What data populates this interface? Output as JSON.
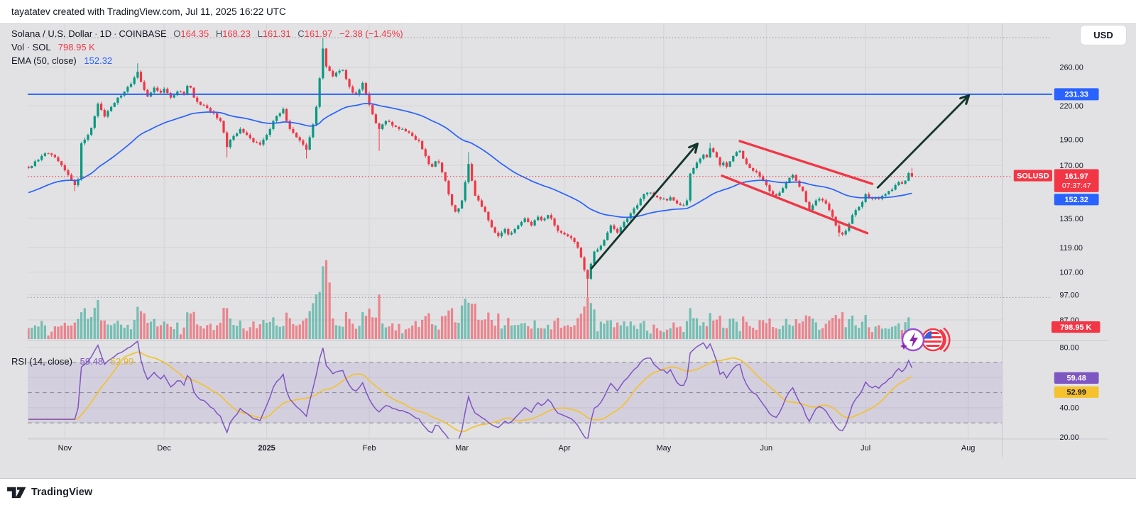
{
  "header": {
    "attribution": "tayatatev created with TradingView.com, Jul 11, 2025 16:22 UTC"
  },
  "currency_button": "USD",
  "legend": {
    "title": "Solana / U.S. Dollar",
    "separator": "·",
    "interval": "1D",
    "exchange": "COINBASE",
    "open_label": "O",
    "open": "164.35",
    "high_label": "H",
    "high": "168.23",
    "low_label": "L",
    "low": "161.31",
    "close_label": "C",
    "close": "161.97",
    "change": "−2.38 (−1.45%)",
    "volume_label": "Vol · SOL",
    "volume": "798.95 K",
    "ema_label": "EMA (50, close)",
    "ema": "152.32"
  },
  "rsi_legend": {
    "label": "RSI (14, close)",
    "value": "59.48",
    "ma": "52.99"
  },
  "footer": {
    "brand": "TradingView"
  },
  "axis": {
    "price_ticks": [
      260,
      220,
      190,
      170,
      135,
      119,
      107,
      97,
      87
    ],
    "rsi_ticks": [
      80,
      40,
      20
    ],
    "months": [
      {
        "label": "Nov",
        "day": 11
      },
      {
        "label": "Dec",
        "day": 41
      },
      {
        "label": "2025",
        "day": 72,
        "bold": true
      },
      {
        "label": "Feb",
        "day": 103
      },
      {
        "label": "Mar",
        "day": 131
      },
      {
        "label": "Apr",
        "day": 162
      },
      {
        "label": "May",
        "day": 192
      },
      {
        "label": "Jun",
        "day": 223
      },
      {
        "label": "Jul",
        "day": 253
      },
      {
        "label": "Aug",
        "day": 284
      }
    ],
    "floating_labels": {
      "hline_value": "231.33",
      "symbol_tag": "SOLUSD",
      "last_price": "161.97",
      "countdown": "07:37:47",
      "ema_value": "152.32",
      "volume_value": "798.95 K",
      "rsi_value": "59.48",
      "rsi_ma_value": "52.99"
    }
  },
  "chart_data": {
    "type": "candlestick",
    "symbol": "SOLUSD",
    "title": "Solana / U.S. Dollar · 1D · COINBASE",
    "interval": "1D",
    "scale": "log",
    "price_axis_range_visible": [
      80.7,
      312
    ],
    "last_bar": {
      "open": 164.35,
      "high": 168.23,
      "low": 161.31,
      "close": 161.97,
      "change": -2.38,
      "change_pct": -1.45
    },
    "indicators": {
      "ema50": 152.32,
      "rsi14": 59.48,
      "rsi14_ma": 52.99,
      "volume": "798.95 K"
    },
    "rsi_bands": {
      "upper": 70,
      "middle": 50,
      "lower": 30
    },
    "close_waypoints": [
      [
        0,
        168
      ],
      [
        2,
        173
      ],
      [
        4,
        177
      ],
      [
        6,
        179
      ],
      [
        8,
        176
      ],
      [
        10,
        170
      ],
      [
        12,
        163
      ],
      [
        14,
        156
      ],
      [
        15,
        160
      ],
      [
        16,
        187
      ],
      [
        17,
        190
      ],
      [
        18,
        194
      ],
      [
        19,
        200
      ],
      [
        21,
        222
      ],
      [
        23,
        210
      ],
      [
        25,
        219
      ],
      [
        27,
        228
      ],
      [
        29,
        234
      ],
      [
        31,
        242
      ],
      [
        33,
        255
      ],
      [
        34,
        244
      ],
      [
        36,
        229
      ],
      [
        38,
        238
      ],
      [
        40,
        233
      ],
      [
        41,
        237
      ],
      [
        43,
        228
      ],
      [
        45,
        234
      ],
      [
        47,
        231
      ],
      [
        48,
        240
      ],
      [
        49,
        238
      ],
      [
        50,
        228
      ],
      [
        52,
        221
      ],
      [
        54,
        218
      ],
      [
        56,
        213
      ],
      [
        58,
        206
      ],
      [
        59,
        196
      ],
      [
        60,
        184
      ],
      [
        61,
        190
      ],
      [
        62,
        193
      ],
      [
        64,
        199
      ],
      [
        66,
        194
      ],
      [
        68,
        188
      ],
      [
        70,
        186
      ],
      [
        71,
        190
      ],
      [
        72,
        194
      ],
      [
        74,
        206
      ],
      [
        76,
        213
      ],
      [
        77,
        217
      ],
      [
        78,
        206
      ],
      [
        79,
        199
      ],
      [
        81,
        192
      ],
      [
        83,
        186
      ],
      [
        84,
        182
      ],
      [
        85,
        192
      ],
      [
        86,
        203
      ],
      [
        87,
        219
      ],
      [
        88,
        248
      ],
      [
        89,
        282
      ],
      [
        90,
        261
      ],
      [
        91,
        256
      ],
      [
        92,
        250
      ],
      [
        93,
        254
      ],
      [
        95,
        257
      ],
      [
        96,
        247
      ],
      [
        97,
        239
      ],
      [
        98,
        233
      ],
      [
        99,
        231
      ],
      [
        100,
        236
      ],
      [
        101,
        243
      ],
      [
        102,
        232
      ],
      [
        103,
        221
      ],
      [
        104,
        212
      ],
      [
        105,
        204
      ],
      [
        106,
        199
      ],
      [
        107,
        203
      ],
      [
        108,
        206
      ],
      [
        110,
        202
      ],
      [
        112,
        199
      ],
      [
        114,
        197
      ],
      [
        116,
        193
      ],
      [
        118,
        189
      ],
      [
        120,
        177
      ],
      [
        121,
        171
      ],
      [
        122,
        169
      ],
      [
        123,
        173
      ],
      [
        124,
        172
      ],
      [
        125,
        165
      ],
      [
        126,
        159
      ],
      [
        127,
        150
      ],
      [
        128,
        143
      ],
      [
        129,
        139
      ],
      [
        130,
        141
      ],
      [
        131,
        146
      ],
      [
        132,
        158
      ],
      [
        133,
        171
      ],
      [
        134,
        159
      ],
      [
        135,
        149
      ],
      [
        136,
        146
      ],
      [
        137,
        142
      ],
      [
        138,
        139
      ],
      [
        139,
        134
      ],
      [
        140,
        130
      ],
      [
        141,
        127
      ],
      [
        142,
        125
      ],
      [
        143,
        127
      ],
      [
        144,
        129
      ],
      [
        145,
        126
      ],
      [
        146,
        127
      ],
      [
        147,
        129
      ],
      [
        148,
        131
      ],
      [
        149,
        133
      ],
      [
        150,
        135
      ],
      [
        151,
        133
      ],
      [
        152,
        131
      ],
      [
        153,
        134
      ],
      [
        154,
        136
      ],
      [
        155,
        134
      ],
      [
        156,
        135
      ],
      [
        157,
        137
      ],
      [
        158,
        135
      ],
      [
        159,
        131
      ],
      [
        160,
        128
      ],
      [
        161,
        127
      ],
      [
        162,
        126
      ],
      [
        163,
        125
      ],
      [
        164,
        124
      ],
      [
        165,
        122
      ],
      [
        166,
        119
      ],
      [
        167,
        114
      ],
      [
        168,
        108
      ],
      [
        169,
        104
      ],
      [
        170,
        111
      ],
      [
        171,
        117
      ],
      [
        172,
        118
      ],
      [
        173,
        120
      ],
      [
        174,
        123
      ],
      [
        175,
        127
      ],
      [
        176,
        131
      ],
      [
        177,
        129
      ],
      [
        178,
        127
      ],
      [
        179,
        130
      ],
      [
        180,
        133
      ],
      [
        181,
        135
      ],
      [
        182,
        138
      ],
      [
        183,
        141
      ],
      [
        184,
        143
      ],
      [
        185,
        147
      ],
      [
        186,
        150
      ],
      [
        187,
        151
      ],
      [
        188,
        151
      ],
      [
        189,
        149
      ],
      [
        190,
        148
      ],
      [
        191,
        147
      ],
      [
        192,
        147
      ],
      [
        193,
        146
      ],
      [
        194,
        148
      ],
      [
        195,
        146
      ],
      [
        196,
        144
      ],
      [
        197,
        143
      ],
      [
        198,
        143
      ],
      [
        199,
        146
      ],
      [
        200,
        164
      ],
      [
        201,
        168
      ],
      [
        202,
        172
      ],
      [
        203,
        175
      ],
      [
        204,
        178
      ],
      [
        205,
        176
      ],
      [
        206,
        183
      ],
      [
        207,
        180
      ],
      [
        208,
        176
      ],
      [
        209,
        170
      ],
      [
        210,
        172
      ],
      [
        211,
        169
      ],
      [
        212,
        173
      ],
      [
        213,
        177
      ],
      [
        214,
        180
      ],
      [
        215,
        181
      ],
      [
        216,
        175
      ],
      [
        217,
        171
      ],
      [
        218,
        168
      ],
      [
        219,
        166
      ],
      [
        220,
        165
      ],
      [
        221,
        162
      ],
      [
        222,
        159
      ],
      [
        223,
        156
      ],
      [
        224,
        152
      ],
      [
        225,
        150
      ],
      [
        226,
        149
      ],
      [
        227,
        151
      ],
      [
        228,
        154
      ],
      [
        229,
        158
      ],
      [
        230,
        161
      ],
      [
        231,
        163
      ],
      [
        232,
        159
      ],
      [
        233,
        155
      ],
      [
        234,
        152
      ],
      [
        235,
        145
      ],
      [
        236,
        140
      ],
      [
        237,
        143
      ],
      [
        238,
        146
      ],
      [
        239,
        147
      ],
      [
        240,
        146
      ],
      [
        241,
        144
      ],
      [
        242,
        140
      ],
      [
        243,
        136
      ],
      [
        244,
        131
      ],
      [
        245,
        127
      ],
      [
        246,
        126
      ],
      [
        247,
        128
      ],
      [
        248,
        132
      ],
      [
        249,
        137
      ],
      [
        250,
        140
      ],
      [
        251,
        142
      ],
      [
        252,
        145
      ],
      [
        253,
        150
      ],
      [
        254,
        148
      ],
      [
        255,
        147
      ],
      [
        256,
        148
      ],
      [
        257,
        147
      ],
      [
        258,
        149
      ],
      [
        259,
        150
      ],
      [
        260,
        152
      ],
      [
        261,
        153
      ],
      [
        262,
        156
      ],
      [
        263,
        158
      ],
      [
        264,
        157
      ],
      [
        265,
        159
      ],
      [
        266,
        164.35
      ],
      [
        267,
        161.97
      ]
    ],
    "wick_overrides": {
      "14": {
        "l": 152
      },
      "33": {
        "h": 264.5
      },
      "60": {
        "l": 176
      },
      "84": {
        "l": 175
      },
      "89": {
        "h": 295.8
      },
      "106": {
        "l": 181
      },
      "133": {
        "h": 180
      },
      "169": {
        "l": 96
      },
      "206": {
        "h": 187.3
      },
      "245": {
        "l": 124.8
      },
      "267": {
        "o": 164.35,
        "h": 168.23,
        "l": 161.31,
        "c": 161.97
      }
    },
    "volume_overrides": {
      "16": 40,
      "17": 46,
      "21": 58,
      "33": 48,
      "49": 38,
      "60": 46,
      "89": 108,
      "90": 117,
      "91": 84,
      "101": 40,
      "106": 66,
      "128": 46,
      "131": 50,
      "133": 54,
      "142": 38,
      "169": 62,
      "171": 44,
      "200": 46,
      "236": 34,
      "244": 36,
      "246": 40,
      "267": 13
    },
    "annotations": {
      "hline_blue": 231.33,
      "current_price_line": 161.97,
      "dotted_hlines": [
        295.5,
        95.9
      ],
      "arrows": [
        {
          "from_day": 170,
          "from_price": 108.5,
          "to_day": 202,
          "to_price": 186
        },
        {
          "from_day": 256.5,
          "from_price": 154,
          "to_day": 284,
          "to_price": 229.5
        }
      ],
      "channel": [
        {
          "from_day": 215,
          "from_price": 188.8,
          "to_day": 255,
          "to_price": 156.9
        },
        {
          "from_day": 209.6,
          "from_price": 162.5,
          "to_day": 253.5,
          "to_price": 126.7
        }
      ]
    },
    "colors": {
      "up": "#089981",
      "down": "#F23645",
      "vol_up": "rgba(8,153,129,0.5)",
      "vol_down": "rgba(242,54,69,0.55)",
      "ema": "#2962FF",
      "rsi": "#7E57C2",
      "rsi_ma": "#F2C230",
      "accent_blue": "#2962FF",
      "accent_red": "#F23645",
      "label_yellow": "#F5C12E",
      "arrow": "#14352c",
      "channel": "#F23645",
      "grid": "#d2d3d7",
      "band_fill": "rgba(126,87,194,0.13)",
      "dashed": "#8c8e99"
    }
  }
}
